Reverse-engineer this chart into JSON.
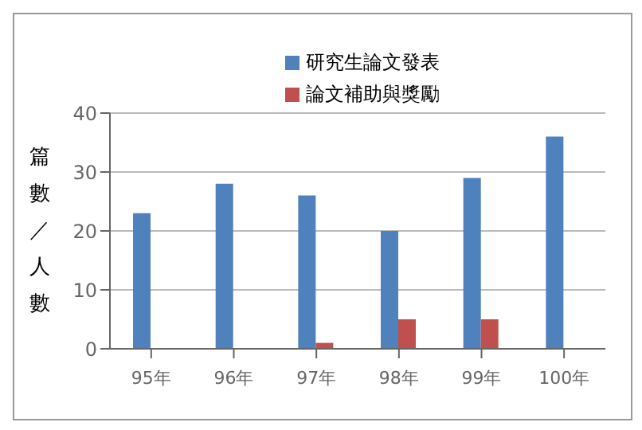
{
  "chart_data": {
    "type": "bar",
    "ylabel": "篇數／人數",
    "categories": [
      "95年",
      "96年",
      "97年",
      "98年",
      "99年",
      "100年"
    ],
    "series": [
      {
        "name": "研究生論文發表",
        "color": "#4f81bd",
        "values": [
          23,
          28,
          26,
          20,
          29,
          36
        ]
      },
      {
        "name": "論文補助與獎勵",
        "color": "#c0504d",
        "values": [
          0,
          0,
          1,
          5,
          5,
          0
        ]
      }
    ],
    "ylim": [
      0,
      40
    ],
    "yticks": [
      0,
      10,
      20,
      30,
      40
    ],
    "grid": "y",
    "legend": "top right"
  }
}
